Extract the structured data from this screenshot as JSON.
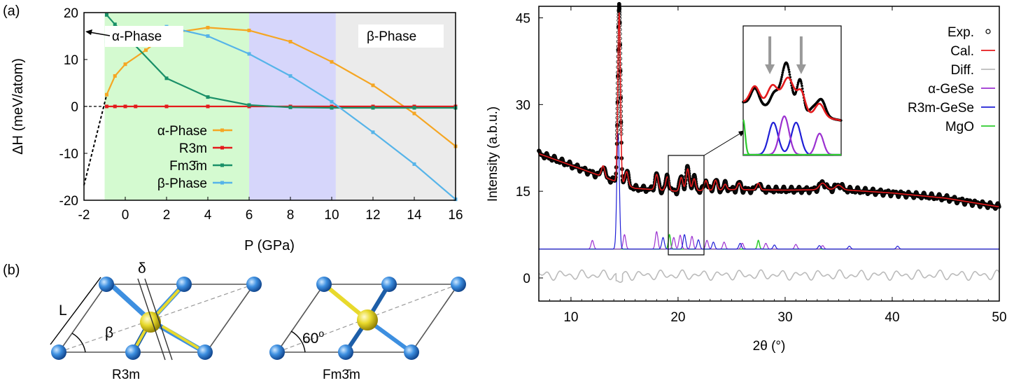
{
  "panel_a": {
    "label": "(a)",
    "region_labels": [
      "α-Phase",
      "β-Phase"
    ],
    "chart_data": {
      "type": "line",
      "xlabel": "P (GPa)",
      "ylabel": "ΔH (meV/atom)",
      "xlim": [
        -2,
        16
      ],
      "ylim": [
        -20,
        20
      ],
      "xticks": [
        -2,
        0,
        2,
        4,
        6,
        8,
        10,
        12,
        14,
        16
      ],
      "yticks": [
        -20,
        -10,
        0,
        10,
        20
      ],
      "shaded_regions": [
        {
          "from": -1,
          "to": 6,
          "color": "#d4fad0"
        },
        {
          "from": 6,
          "to": 10.2,
          "color": "#d6d6fb"
        },
        {
          "from": 10.2,
          "to": 16,
          "color": "#ebebeb"
        }
      ],
      "extrapolation": {
        "x": [
          -2,
          -0.9
        ],
        "y": [
          -16.8,
          2.5
        ]
      },
      "series": [
        {
          "name": "α-Phase",
          "color": "#f5a623",
          "x": [
            -0.9,
            -0.5,
            0,
            1,
            2,
            4,
            6,
            8,
            10,
            12,
            14,
            16
          ],
          "y": [
            2.5,
            6.5,
            9.0,
            12.0,
            15.5,
            16.8,
            16.2,
            13.8,
            9.5,
            4.5,
            -1.5,
            -8.5
          ]
        },
        {
          "name": "R3m",
          "color": "#e41a1c",
          "x": [
            -0.9,
            -0.5,
            0,
            0.5,
            2,
            4,
            6,
            8,
            10,
            12,
            14,
            16
          ],
          "y": [
            0,
            0,
            0,
            0,
            0,
            0,
            0,
            0,
            0,
            0,
            0,
            0
          ]
        },
        {
          "name": "Fm3̄m",
          "color": "#1a9068",
          "x": [
            -0.9,
            -0.5,
            2,
            4,
            6,
            8,
            10,
            12,
            14,
            16
          ],
          "y": [
            19.5,
            17.5,
            6.0,
            2.0,
            0.3,
            -0.2,
            -0.3,
            -0.3,
            -0.3,
            -0.3
          ]
        },
        {
          "name": "β-Phase",
          "color": "#56b4e9",
          "x": [
            -0.9,
            2,
            4,
            6,
            8,
            10,
            12,
            14,
            16
          ],
          "y": [
            13.8,
            17.0,
            15.0,
            11.2,
            6.5,
            1.0,
            -5.5,
            -12.3,
            -19.8
          ]
        }
      ]
    }
  },
  "panel_b": {
    "label": "(b)",
    "structure_1": {
      "name": "R3m",
      "edge_label": "L",
      "angle_label": "β",
      "shift_label": "δ"
    },
    "structure_2": {
      "name": "Fm3̄m",
      "angle_label": "60",
      "angle_sup": "o"
    }
  },
  "panel_c": {
    "chart_data": {
      "type": "line",
      "xlabel": "2θ (°)",
      "ylabel": "Intensity (a.b.u.)",
      "xlim": [
        7,
        50
      ],
      "ylim": [
        -4,
        47
      ],
      "xticks": [
        10,
        20,
        30,
        40,
        50
      ],
      "yticks": [
        0,
        15,
        30,
        45
      ],
      "legend_position": "top-right",
      "legend": [
        {
          "name": "Exp.",
          "color": "#000000",
          "style": "marker"
        },
        {
          "name": "Cal.",
          "color": "#e41a1c",
          "style": "line"
        },
        {
          "name": "Diff.",
          "color": "#bbbbbb",
          "style": "line"
        },
        {
          "name": "α-GeSe",
          "color": "#9b30d0",
          "style": "line"
        },
        {
          "name": "R3m-GeSe",
          "color": "#1f1fd6",
          "style": "line"
        },
        {
          "name": "MgO",
          "color": "#2ecc2e",
          "style": "line"
        }
      ],
      "background": {
        "x": [
          7,
          10,
          13,
          16,
          20,
          25,
          30,
          35,
          40,
          45,
          50
        ],
        "y": [
          21.5,
          19.5,
          17.5,
          15.5,
          15.0,
          15.3,
          15.2,
          15.3,
          14.7,
          13.8,
          12.3
        ]
      },
      "exp_peaks": [
        {
          "x": 14.5,
          "h": 31,
          "w": 0.12
        },
        {
          "x": 13.0,
          "h": 2.0,
          "w": 0.15
        },
        {
          "x": 15.2,
          "h": 2.5,
          "w": 0.15
        },
        {
          "x": 18.0,
          "h": 2.8,
          "w": 0.15
        },
        {
          "x": 19.0,
          "h": 2.5,
          "w": 0.15
        },
        {
          "x": 20.3,
          "h": 2.5,
          "w": 0.15
        },
        {
          "x": 20.9,
          "h": 4.0,
          "w": 0.15
        },
        {
          "x": 21.5,
          "h": 2.2,
          "w": 0.15
        },
        {
          "x": 22.6,
          "h": 1.8,
          "w": 0.15
        },
        {
          "x": 23.5,
          "h": 1.8,
          "w": 0.15
        },
        {
          "x": 24.4,
          "h": 1.0,
          "w": 0.15
        },
        {
          "x": 25.7,
          "h": 1.2,
          "w": 0.15
        },
        {
          "x": 27.5,
          "h": 1.2,
          "w": 0.15
        },
        {
          "x": 33.5,
          "h": 1.2,
          "w": 0.3
        },
        {
          "x": 35.0,
          "h": 0.8,
          "w": 0.3
        }
      ],
      "phase_peaks": {
        "alpha": [
          [
            12.0,
            1.5
          ],
          [
            15.0,
            2.5
          ],
          [
            18.0,
            3.0
          ],
          [
            19.6,
            2.0
          ],
          [
            20.2,
            2.4
          ],
          [
            21.3,
            2.2
          ],
          [
            22.7,
            1.5
          ],
          [
            24.3,
            1.2
          ],
          [
            26.0,
            1.0
          ],
          [
            28.2,
            1.0
          ],
          [
            31.0,
            0.8
          ],
          [
            33.5,
            0.6
          ]
        ],
        "r3m": [
          [
            14.4,
            20.0
          ],
          [
            18.6,
            2.0
          ],
          [
            20.6,
            2.5
          ],
          [
            21.9,
            1.6
          ],
          [
            23.3,
            1.2
          ],
          [
            25.8,
            1.0
          ],
          [
            29.0,
            0.7
          ],
          [
            33.2,
            0.6
          ],
          [
            36.0,
            0.5
          ],
          [
            40.5,
            0.5
          ]
        ],
        "mgo": [
          [
            19.2,
            2.5
          ],
          [
            27.5,
            1.5
          ]
        ]
      },
      "phase_baseline": 5,
      "diff_baseline": 0.5
    },
    "inset_arrows": 2
  }
}
